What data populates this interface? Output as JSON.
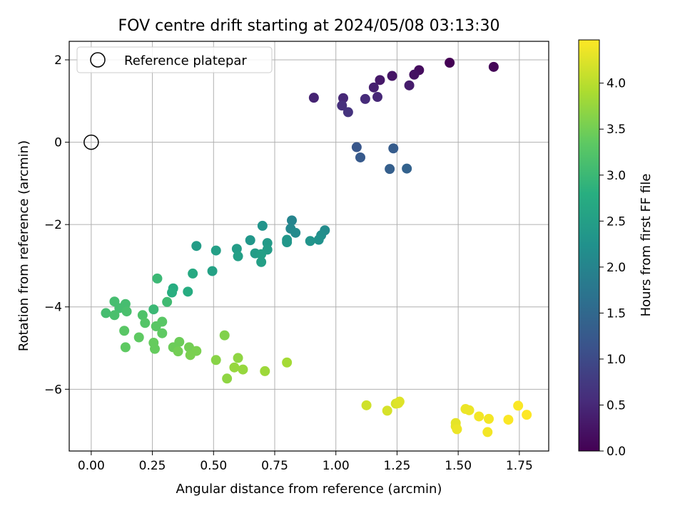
{
  "chart_data": {
    "type": "scatter",
    "title": "FOV centre drift starting at 2024/05/08 03:13:30",
    "xlabel": "Angular distance from reference (arcmin)",
    "ylabel": "Rotation from reference (arcmin)",
    "xlim": [
      -0.09,
      1.87
    ],
    "ylim": [
      -7.5,
      2.45
    ],
    "x_ticks": [
      0.0,
      0.25,
      0.5,
      0.75,
      1.0,
      1.25,
      1.5,
      1.75
    ],
    "x_tick_labels": [
      "0.00",
      "0.25",
      "0.50",
      "0.75",
      "1.00",
      "1.25",
      "1.50",
      "1.75"
    ],
    "y_ticks": [
      2,
      0,
      -2,
      -4,
      -6
    ],
    "y_tick_labels": [
      "2",
      "0",
      "−2",
      "−4",
      "−6"
    ],
    "grid": true,
    "legend": {
      "position": "top-left",
      "entries": [
        "Reference platepar"
      ]
    },
    "reference_point": {
      "x": 0.0,
      "y": 0.0,
      "label": "Reference platepar"
    },
    "colorbar": {
      "label": "Hours from first FF file",
      "colormap": "viridis",
      "range": [
        0.0,
        4.47
      ],
      "ticks": [
        0.0,
        0.5,
        1.0,
        1.5,
        2.0,
        2.5,
        3.0,
        3.5,
        4.0
      ],
      "tick_labels": [
        "0.0",
        "0.5",
        "1.0",
        "1.5",
        "2.0",
        "2.5",
        "3.0",
        "3.5",
        "4.0"
      ]
    },
    "points": [
      {
        "x": 1.465,
        "y": 1.93,
        "c": 0.0
      },
      {
        "x": 1.645,
        "y": 1.83,
        "c": 0.05
      },
      {
        "x": 1.34,
        "y": 1.75,
        "c": 0.15
      },
      {
        "x": 1.32,
        "y": 1.64,
        "c": 0.2
      },
      {
        "x": 1.23,
        "y": 1.61,
        "c": 0.25
      },
      {
        "x": 1.18,
        "y": 1.51,
        "c": 0.3
      },
      {
        "x": 1.3,
        "y": 1.38,
        "c": 0.35
      },
      {
        "x": 1.155,
        "y": 1.33,
        "c": 0.4
      },
      {
        "x": 0.91,
        "y": 1.08,
        "c": 0.45
      },
      {
        "x": 1.03,
        "y": 1.07,
        "c": 0.5
      },
      {
        "x": 1.12,
        "y": 1.05,
        "c": 0.55
      },
      {
        "x": 1.17,
        "y": 1.1,
        "c": 0.5
      },
      {
        "x": 1.025,
        "y": 0.89,
        "c": 0.6
      },
      {
        "x": 1.05,
        "y": 0.73,
        "c": 0.65
      },
      {
        "x": 1.085,
        "y": -0.12,
        "c": 1.2
      },
      {
        "x": 1.1,
        "y": -0.37,
        "c": 1.25
      },
      {
        "x": 1.235,
        "y": -0.15,
        "c": 1.3
      },
      {
        "x": 1.22,
        "y": -0.65,
        "c": 1.35
      },
      {
        "x": 1.29,
        "y": -0.64,
        "c": 1.4
      },
      {
        "x": 0.82,
        "y": -1.9,
        "c": 2.0
      },
      {
        "x": 0.815,
        "y": -2.1,
        "c": 2.05
      },
      {
        "x": 0.835,
        "y": -2.2,
        "c": 2.1
      },
      {
        "x": 0.955,
        "y": -2.14,
        "c": 2.15
      },
      {
        "x": 0.94,
        "y": -2.26,
        "c": 2.2
      },
      {
        "x": 0.93,
        "y": -2.37,
        "c": 2.25
      },
      {
        "x": 0.895,
        "y": -2.4,
        "c": 2.3
      },
      {
        "x": 0.8,
        "y": -2.37,
        "c": 2.35
      },
      {
        "x": 0.8,
        "y": -2.43,
        "c": 2.35
      },
      {
        "x": 0.7,
        "y": -2.03,
        "c": 2.3
      },
      {
        "x": 0.72,
        "y": -2.45,
        "c": 2.4
      },
      {
        "x": 0.72,
        "y": -2.61,
        "c": 2.45
      },
      {
        "x": 0.65,
        "y": -2.38,
        "c": 2.35
      },
      {
        "x": 0.67,
        "y": -2.7,
        "c": 2.45
      },
      {
        "x": 0.695,
        "y": -2.72,
        "c": 2.5
      },
      {
        "x": 0.695,
        "y": -2.91,
        "c": 2.5
      },
      {
        "x": 0.595,
        "y": -2.59,
        "c": 2.45
      },
      {
        "x": 0.6,
        "y": -2.77,
        "c": 2.5
      },
      {
        "x": 0.51,
        "y": -2.63,
        "c": 2.5
      },
      {
        "x": 0.495,
        "y": -3.13,
        "c": 2.55
      },
      {
        "x": 0.43,
        "y": -2.52,
        "c": 2.45
      },
      {
        "x": 0.415,
        "y": -3.19,
        "c": 2.7
      },
      {
        "x": 0.395,
        "y": -3.63,
        "c": 2.75
      },
      {
        "x": 0.335,
        "y": -3.55,
        "c": 2.75
      },
      {
        "x": 0.33,
        "y": -3.65,
        "c": 2.8
      },
      {
        "x": 0.27,
        "y": -3.31,
        "c": 3.0
      },
      {
        "x": 0.31,
        "y": -3.88,
        "c": 3.05
      },
      {
        "x": 0.255,
        "y": -4.06,
        "c": 3.0
      },
      {
        "x": 0.095,
        "y": -3.87,
        "c": 3.1
      },
      {
        "x": 0.14,
        "y": -3.93,
        "c": 3.1
      },
      {
        "x": 0.115,
        "y": -4.03,
        "c": 3.1
      },
      {
        "x": 0.145,
        "y": -4.11,
        "c": 3.15
      },
      {
        "x": 0.06,
        "y": -4.15,
        "c": 3.1
      },
      {
        "x": 0.095,
        "y": -4.2,
        "c": 3.15
      },
      {
        "x": 0.21,
        "y": -4.2,
        "c": 3.2
      },
      {
        "x": 0.22,
        "y": -4.39,
        "c": 3.25
      },
      {
        "x": 0.265,
        "y": -4.47,
        "c": 3.3
      },
      {
        "x": 0.29,
        "y": -4.36,
        "c": 3.3
      },
      {
        "x": 0.135,
        "y": -4.58,
        "c": 3.3
      },
      {
        "x": 0.29,
        "y": -4.64,
        "c": 3.35
      },
      {
        "x": 0.195,
        "y": -4.74,
        "c": 3.35
      },
      {
        "x": 0.255,
        "y": -4.87,
        "c": 3.4
      },
      {
        "x": 0.14,
        "y": -4.98,
        "c": 3.35
      },
      {
        "x": 0.26,
        "y": -5.02,
        "c": 3.4
      },
      {
        "x": 0.335,
        "y": -4.98,
        "c": 3.45
      },
      {
        "x": 0.36,
        "y": -4.85,
        "c": 3.45
      },
      {
        "x": 0.355,
        "y": -5.08,
        "c": 3.5
      },
      {
        "x": 0.4,
        "y": -4.98,
        "c": 3.5
      },
      {
        "x": 0.405,
        "y": -5.17,
        "c": 3.55
      },
      {
        "x": 0.43,
        "y": -5.07,
        "c": 3.55
      },
      {
        "x": 0.545,
        "y": -4.69,
        "c": 3.6
      },
      {
        "x": 0.51,
        "y": -5.29,
        "c": 3.65
      },
      {
        "x": 0.6,
        "y": -5.24,
        "c": 3.7
      },
      {
        "x": 0.585,
        "y": -5.47,
        "c": 3.75
      },
      {
        "x": 0.62,
        "y": -5.52,
        "c": 3.75
      },
      {
        "x": 0.555,
        "y": -5.74,
        "c": 3.7
      },
      {
        "x": 0.71,
        "y": -5.56,
        "c": 3.8
      },
      {
        "x": 0.8,
        "y": -5.35,
        "c": 3.85
      },
      {
        "x": 1.125,
        "y": -6.39,
        "c": 4.15
      },
      {
        "x": 1.21,
        "y": -6.52,
        "c": 4.2
      },
      {
        "x": 1.245,
        "y": -6.35,
        "c": 4.2
      },
      {
        "x": 1.26,
        "y": -6.3,
        "c": 4.25
      },
      {
        "x": 1.255,
        "y": -6.34,
        "c": 4.25
      },
      {
        "x": 1.49,
        "y": -6.82,
        "c": 4.3
      },
      {
        "x": 1.49,
        "y": -6.9,
        "c": 4.3
      },
      {
        "x": 1.495,
        "y": -6.97,
        "c": 4.35
      },
      {
        "x": 1.53,
        "y": -6.48,
        "c": 4.35
      },
      {
        "x": 1.545,
        "y": -6.51,
        "c": 4.35
      },
      {
        "x": 1.585,
        "y": -6.66,
        "c": 4.4
      },
      {
        "x": 1.625,
        "y": -6.72,
        "c": 4.4
      },
      {
        "x": 1.62,
        "y": -7.04,
        "c": 4.4
      },
      {
        "x": 1.705,
        "y": -6.74,
        "c": 4.45
      },
      {
        "x": 1.745,
        "y": -6.4,
        "c": 4.45
      },
      {
        "x": 1.78,
        "y": -6.62,
        "c": 4.47
      }
    ]
  }
}
